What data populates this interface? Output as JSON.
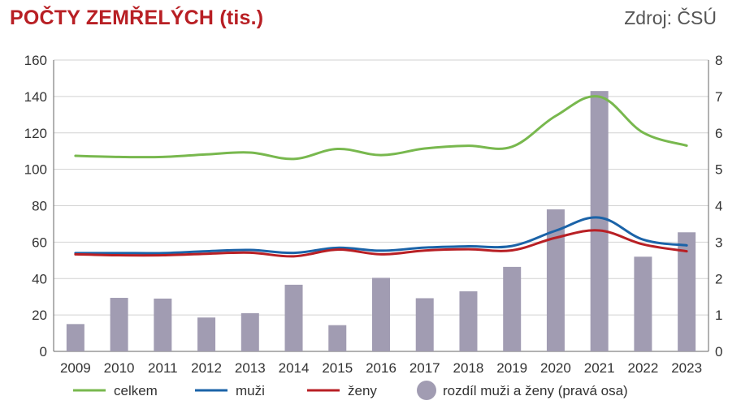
{
  "header": {
    "title": "POČTY ZEMŘELÝCH (tis.)",
    "source": "Zdroj: ČSÚ"
  },
  "colors": {
    "celkem": "#78b84e",
    "muzi": "#1b63a8",
    "zeny": "#b81f24",
    "rozdil": "#a19cb2",
    "title": "#b81f24"
  },
  "chart_data": {
    "type": "bar",
    "title": "POČTY ZEMŘELÝCH (tis.)",
    "categories": [
      "2009",
      "2010",
      "2011",
      "2012",
      "2013",
      "2014",
      "2015",
      "2016",
      "2017",
      "2018",
      "2019",
      "2020",
      "2021",
      "2022",
      "2023"
    ],
    "ylim": [
      0,
      160
    ],
    "y_ticks": [
      "0",
      "20",
      "40",
      "60",
      "80",
      "100",
      "120",
      "140",
      "160"
    ],
    "y2lim": [
      0,
      8
    ],
    "y2_ticks": [
      "0",
      "1",
      "2",
      "3",
      "4",
      "5",
      "6",
      "7",
      "8"
    ],
    "grid": true,
    "legend_position": "bottom",
    "series": [
      {
        "name": "celkem",
        "type": "line",
        "axis": "left",
        "values": [
          107.4,
          106.8,
          106.8,
          108.2,
          109.2,
          105.7,
          111.2,
          107.8,
          111.4,
          112.9,
          112.4,
          129.3,
          139.9,
          120.2,
          113.0
        ]
      },
      {
        "name": "muži",
        "type": "line",
        "axis": "left",
        "values": [
          54.0,
          54.0,
          54.0,
          55.0,
          55.7,
          54.1,
          56.9,
          55.3,
          57.0,
          57.7,
          57.9,
          66.3,
          73.5,
          61.4,
          58.2
        ]
      },
      {
        "name": "ženy",
        "type": "line",
        "axis": "left",
        "values": [
          53.3,
          52.8,
          52.8,
          53.6,
          54.2,
          52.2,
          55.9,
          53.3,
          55.4,
          56.1,
          55.5,
          62.4,
          66.4,
          58.8,
          55.0
        ]
      },
      {
        "name": "rozdíl muži a ženy (pravá osa)",
        "type": "bar",
        "axis": "right",
        "values": [
          0.75,
          1.47,
          1.45,
          0.93,
          1.05,
          1.83,
          0.72,
          2.02,
          1.46,
          1.65,
          2.32,
          3.9,
          7.15,
          2.6,
          3.27
        ]
      }
    ]
  }
}
